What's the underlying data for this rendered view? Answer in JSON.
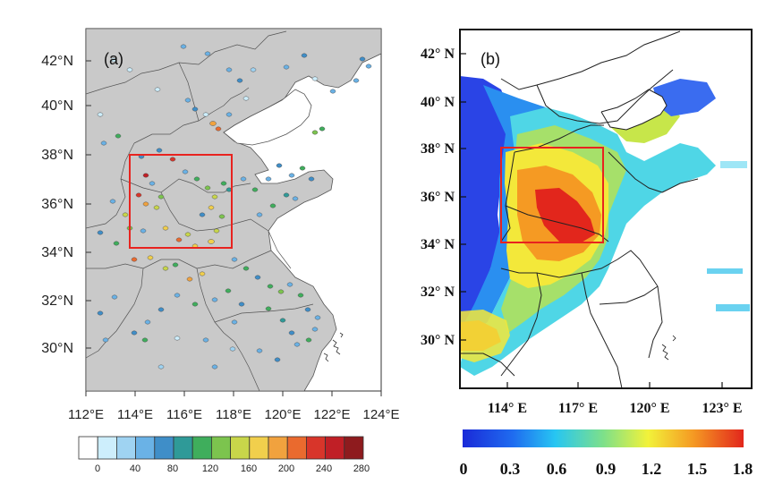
{
  "panel_a": {
    "label": "(a)",
    "lat_ticks": [
      "42°N",
      "40°N",
      "38°N",
      "36°N",
      "34°N",
      "32°N",
      "30°N"
    ],
    "lon_ticks": [
      "112°E",
      "114°E",
      "116°E",
      "118°E",
      "120°E",
      "122°E",
      "124°E"
    ],
    "colorbar": {
      "colors": [
        "#ffffff",
        "#cdeefc",
        "#9fd3f2",
        "#6ab2e6",
        "#3f8ec8",
        "#2f9a98",
        "#3fae5c",
        "#7cc44e",
        "#c8d64a",
        "#f1cf4c",
        "#f1a23e",
        "#ea6a2e",
        "#d8352a",
        "#c01f26",
        "#8e1b1e"
      ],
      "tick_labels": [
        "0",
        "40",
        "80",
        "120",
        "160",
        "200",
        "240",
        "280"
      ]
    }
  },
  "panel_b": {
    "label": "(b)",
    "lat_ticks": [
      "42° N",
      "40° N",
      "38° N",
      "36° N",
      "34° N",
      "32° N",
      "30° N"
    ],
    "lon_ticks": [
      "114° E",
      "117° E",
      "120° E",
      "123° E"
    ],
    "colorbar": {
      "tick_labels": [
        "0",
        "0.3",
        "0.6",
        "0.9",
        "1.2",
        "1.5",
        "1.8"
      ]
    }
  },
  "colors": {
    "land": "#c9c9c9",
    "highlight_box": "#e8231f",
    "border": "#333333"
  }
}
